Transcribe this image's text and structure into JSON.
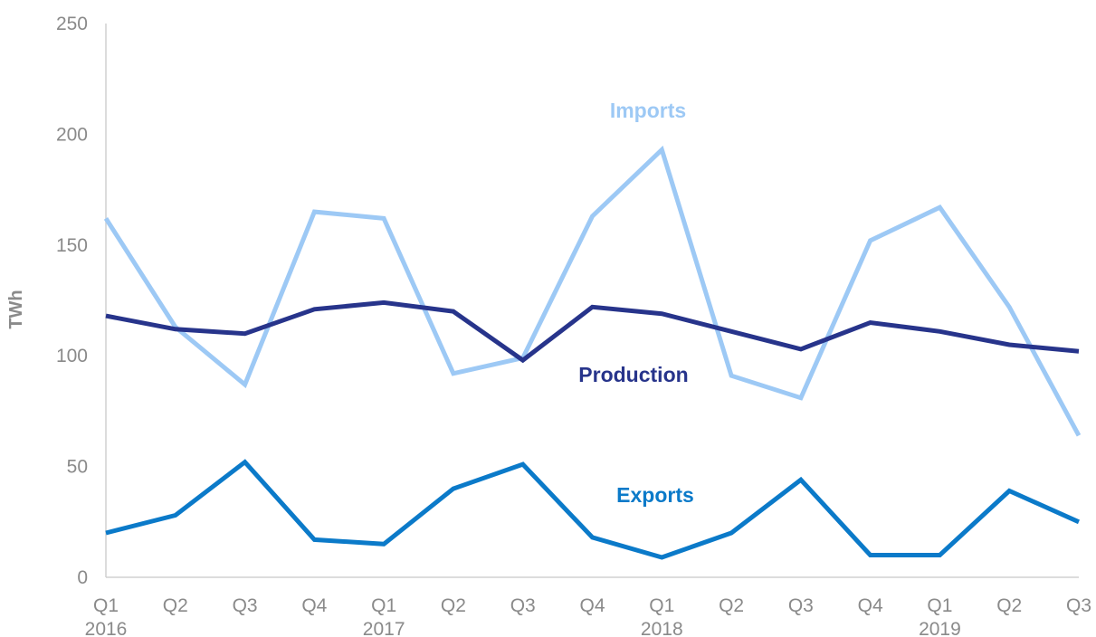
{
  "chart_data": {
    "type": "line",
    "title": "",
    "xlabel": "",
    "ylabel": "TWh",
    "ylim": [
      0,
      250
    ],
    "yticks": [
      0,
      50,
      100,
      150,
      200,
      250
    ],
    "grid": false,
    "legend": "none",
    "categories": [
      "Q1",
      "Q2",
      "Q3",
      "Q4",
      "Q1",
      "Q2",
      "Q3",
      "Q4",
      "Q1",
      "Q2",
      "Q3",
      "Q4",
      "Q1",
      "Q2",
      "Q3"
    ],
    "years": [
      {
        "label": "2016",
        "index": 0
      },
      {
        "label": "2017",
        "index": 4
      },
      {
        "label": "2018",
        "index": 8
      },
      {
        "label": "2019",
        "index": 12
      }
    ],
    "series": [
      {
        "name": "Imports",
        "color": "#9dc9f5",
        "values": [
          162,
          113,
          87,
          165,
          162,
          92,
          99,
          163,
          193,
          91,
          81,
          152,
          167,
          122,
          64
        ]
      },
      {
        "name": "Production",
        "color": "#27348b",
        "values": [
          118,
          112,
          110,
          121,
          124,
          120,
          98,
          122,
          119,
          111,
          103,
          115,
          111,
          105,
          102
        ]
      },
      {
        "name": "Exports",
        "color": "#0b7ac9",
        "values": [
          20,
          28,
          52,
          17,
          15,
          40,
          51,
          18,
          9,
          20,
          44,
          10,
          10,
          39,
          25
        ]
      }
    ],
    "labels": [
      {
        "text": "Imports",
        "series": "Imports"
      },
      {
        "text": "Production",
        "series": "Production"
      },
      {
        "text": "Exports",
        "series": "Exports"
      }
    ]
  }
}
